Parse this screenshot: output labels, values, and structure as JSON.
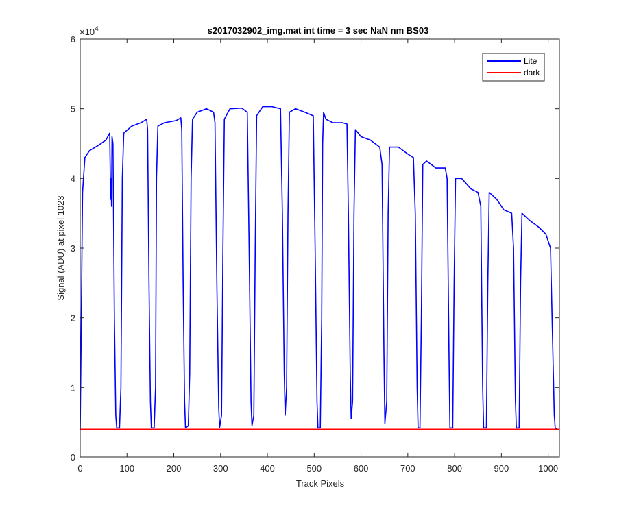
{
  "chart_data": {
    "type": "line",
    "title": "s2017032902_img.mat int time = 3 sec  NaN nm BS03",
    "xlabel": "Track Pixels",
    "ylabel": "Signal (ADU) at pixel 1023",
    "xlim": [
      0,
      1024
    ],
    "ylim": [
      0,
      60000
    ],
    "x_ticks": [
      0,
      100,
      200,
      300,
      400,
      500,
      600,
      700,
      800,
      900,
      1000
    ],
    "y_ticks": [
      0,
      10000,
      20000,
      30000,
      40000,
      50000,
      60000
    ],
    "y_tick_labels": [
      "0",
      "1",
      "2",
      "3",
      "4",
      "5",
      "6"
    ],
    "y_exponent_base": "×10",
    "y_exponent_power": "4",
    "grid": false,
    "legend": "top-right",
    "series": [
      {
        "name": "Lite",
        "color": "#0000ff",
        "points": [
          [
            0,
            4000
          ],
          [
            5,
            38000
          ],
          [
            10,
            43000
          ],
          [
            20,
            44000
          ],
          [
            40,
            44800
          ],
          [
            55,
            45500
          ],
          [
            63,
            46500
          ],
          [
            65,
            37000
          ],
          [
            66,
            40000
          ],
          [
            67,
            36000
          ],
          [
            68,
            46000
          ],
          [
            70,
            45000
          ],
          [
            73,
            20000
          ],
          [
            76,
            6000
          ],
          [
            78,
            4200
          ],
          [
            84,
            4200
          ],
          [
            87,
            10000
          ],
          [
            90,
            40000
          ],
          [
            93,
            46500
          ],
          [
            110,
            47500
          ],
          [
            130,
            48000
          ],
          [
            142,
            48500
          ],
          [
            144,
            47000
          ],
          [
            147,
            25000
          ],
          [
            150,
            8000
          ],
          [
            152,
            4200
          ],
          [
            158,
            4200
          ],
          [
            161,
            10000
          ],
          [
            163,
            40000
          ],
          [
            166,
            47500
          ],
          [
            180,
            48000
          ],
          [
            205,
            48300
          ],
          [
            215,
            48700
          ],
          [
            217,
            47000
          ],
          [
            220,
            25000
          ],
          [
            223,
            8000
          ],
          [
            225,
            4200
          ],
          [
            231,
            4500
          ],
          [
            234,
            12000
          ],
          [
            237,
            40000
          ],
          [
            240,
            48500
          ],
          [
            250,
            49500
          ],
          [
            270,
            50000
          ],
          [
            285,
            49500
          ],
          [
            288,
            48000
          ],
          [
            292,
            25000
          ],
          [
            296,
            7000
          ],
          [
            298,
            4300
          ],
          [
            302,
            6000
          ],
          [
            305,
            30000
          ],
          [
            308,
            48500
          ],
          [
            320,
            50000
          ],
          [
            345,
            50100
          ],
          [
            357,
            49500
          ],
          [
            361,
            30000
          ],
          [
            365,
            8000
          ],
          [
            367,
            4500
          ],
          [
            371,
            6000
          ],
          [
            374,
            30000
          ],
          [
            377,
            49000
          ],
          [
            390,
            50300
          ],
          [
            410,
            50300
          ],
          [
            428,
            50000
          ],
          [
            432,
            35000
          ],
          [
            436,
            12000
          ],
          [
            438,
            6000
          ],
          [
            441,
            10000
          ],
          [
            444,
            35000
          ],
          [
            447,
            49500
          ],
          [
            460,
            50000
          ],
          [
            480,
            49500
          ],
          [
            498,
            49000
          ],
          [
            502,
            30000
          ],
          [
            506,
            8000
          ],
          [
            508,
            4200
          ],
          [
            513,
            4200
          ],
          [
            516,
            20000
          ],
          [
            518,
            45000
          ],
          [
            520,
            49500
          ],
          [
            525,
            48500
          ],
          [
            540,
            48000
          ],
          [
            560,
            48000
          ],
          [
            570,
            47800
          ],
          [
            573,
            35000
          ],
          [
            577,
            12000
          ],
          [
            579,
            5500
          ],
          [
            582,
            8000
          ],
          [
            585,
            35000
          ],
          [
            588,
            47000
          ],
          [
            600,
            46000
          ],
          [
            620,
            45500
          ],
          [
            640,
            44500
          ],
          [
            645,
            42000
          ],
          [
            649,
            15000
          ],
          [
            651,
            4800
          ],
          [
            655,
            8000
          ],
          [
            658,
            35000
          ],
          [
            661,
            44500
          ],
          [
            680,
            44500
          ],
          [
            700,
            43500
          ],
          [
            712,
            43000
          ],
          [
            716,
            35000
          ],
          [
            720,
            10000
          ],
          [
            722,
            4200
          ],
          [
            726,
            4200
          ],
          [
            729,
            20000
          ],
          [
            732,
            42000
          ],
          [
            740,
            42500
          ],
          [
            760,
            41500
          ],
          [
            780,
            41500
          ],
          [
            784,
            40000
          ],
          [
            788,
            15000
          ],
          [
            790,
            4200
          ],
          [
            796,
            4200
          ],
          [
            799,
            25000
          ],
          [
            802,
            40000
          ],
          [
            815,
            40000
          ],
          [
            835,
            38500
          ],
          [
            850,
            38000
          ],
          [
            856,
            36000
          ],
          [
            860,
            10000
          ],
          [
            862,
            4200
          ],
          [
            868,
            4200
          ],
          [
            871,
            25000
          ],
          [
            874,
            38000
          ],
          [
            890,
            37000
          ],
          [
            905,
            35500
          ],
          [
            922,
            35000
          ],
          [
            926,
            30000
          ],
          [
            930,
            8000
          ],
          [
            932,
            4200
          ],
          [
            938,
            4200
          ],
          [
            941,
            25000
          ],
          [
            944,
            35000
          ],
          [
            960,
            34000
          ],
          [
            980,
            33000
          ],
          [
            995,
            32000
          ],
          [
            1005,
            30000
          ],
          [
            1010,
            15000
          ],
          [
            1013,
            6000
          ],
          [
            1015,
            4200
          ],
          [
            1020,
            4000
          ]
        ]
      },
      {
        "name": "dark",
        "color": "#ff0000",
        "points": [
          [
            0,
            4000
          ],
          [
            1024,
            4000
          ]
        ]
      }
    ]
  }
}
